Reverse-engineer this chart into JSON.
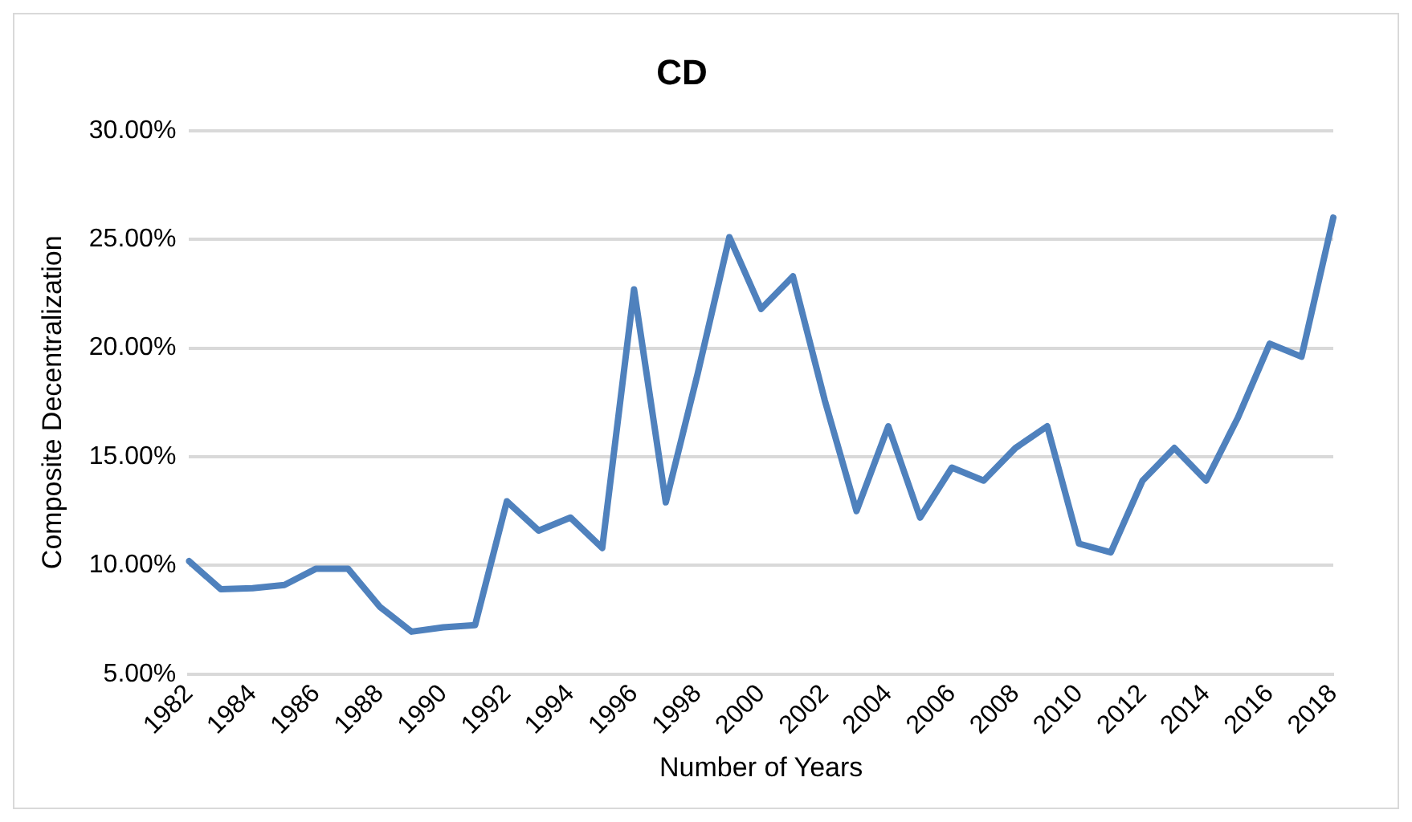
{
  "chart_data": {
    "type": "line",
    "title": "CD",
    "xlabel": "Number of Years",
    "ylabel": "Composite Decentralization",
    "categories": [
      "1982",
      null,
      "1984",
      null,
      "1986",
      null,
      "1988",
      null,
      "1990",
      null,
      "1992",
      null,
      "1994",
      null,
      "1996",
      null,
      "1998",
      null,
      "2000",
      null,
      "2002",
      null,
      "2004",
      null,
      "2006",
      null,
      "2008",
      null,
      "2010",
      null,
      "2012",
      null,
      "2014",
      null,
      "2016",
      null,
      "2018"
    ],
    "series": [
      {
        "color": "#4f81bd",
        "values": [
          10.2,
          8.9,
          8.95,
          9.1,
          9.85,
          9.85,
          8.1,
          6.95,
          7.15,
          7.25,
          12.95,
          11.6,
          12.2,
          10.8,
          22.7,
          12.9,
          18.8,
          25.1,
          21.8,
          23.3,
          17.6,
          12.5,
          16.4,
          12.2,
          14.5,
          13.9,
          15.4,
          16.4,
          11.0,
          10.6,
          13.9,
          15.4,
          13.9,
          16.8,
          20.2,
          19.6,
          26.0
        ]
      }
    ],
    "ylim": [
      5,
      30
    ],
    "yticks": [
      {
        "value": 5,
        "label": "5.00%"
      },
      {
        "value": 10,
        "label": "10.00%"
      },
      {
        "value": 15,
        "label": "15.00%"
      },
      {
        "value": 20,
        "label": "20.00%"
      },
      {
        "value": 25,
        "label": "25.00%"
      },
      {
        "value": 30,
        "label": "30.00%"
      }
    ],
    "grid": "y",
    "legend": false,
    "marker": "none",
    "line_style": "solid"
  }
}
